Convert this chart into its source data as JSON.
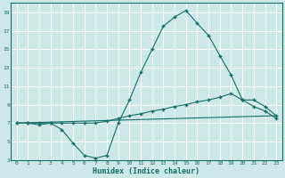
{
  "xlabel": "Humidex (Indice chaleur)",
  "background_color": "#cce8e8",
  "grid_color": "#ffffff",
  "line_color": "#1a6b6b",
  "xlim": [
    -0.5,
    23.5
  ],
  "ylim": [
    3,
    20
  ],
  "xticks": [
    0,
    1,
    2,
    3,
    4,
    5,
    6,
    7,
    8,
    9,
    10,
    11,
    12,
    13,
    14,
    15,
    16,
    17,
    18,
    19,
    20,
    21,
    22,
    23
  ],
  "yticks": [
    3,
    5,
    7,
    9,
    11,
    13,
    15,
    17,
    19
  ],
  "series1_x": [
    0,
    1,
    2,
    3,
    4,
    5,
    6,
    7,
    8,
    9,
    10,
    11,
    12,
    13,
    14,
    15,
    16,
    17,
    18,
    19,
    20,
    21,
    22,
    23
  ],
  "series1_y": [
    7.0,
    7.0,
    6.8,
    7.0,
    6.3,
    4.8,
    3.5,
    3.2,
    3.5,
    7.0,
    9.5,
    12.5,
    15.0,
    17.5,
    18.5,
    19.2,
    17.8,
    16.5,
    14.3,
    12.2,
    9.5,
    8.8,
    8.3,
    7.5
  ],
  "series2_x": [
    0,
    1,
    2,
    3,
    4,
    5,
    6,
    7,
    8,
    9,
    10,
    11,
    12,
    13,
    14,
    15,
    16,
    17,
    18,
    19,
    20,
    21,
    22,
    23
  ],
  "series2_y": [
    7.0,
    7.0,
    7.0,
    7.0,
    7.0,
    7.0,
    7.0,
    7.0,
    7.2,
    7.5,
    7.8,
    8.0,
    8.3,
    8.5,
    8.8,
    9.0,
    9.3,
    9.5,
    9.8,
    10.2,
    9.5,
    9.5,
    8.8,
    7.8
  ],
  "series3_x": [
    0,
    23
  ],
  "series3_y": [
    7.0,
    7.8
  ]
}
